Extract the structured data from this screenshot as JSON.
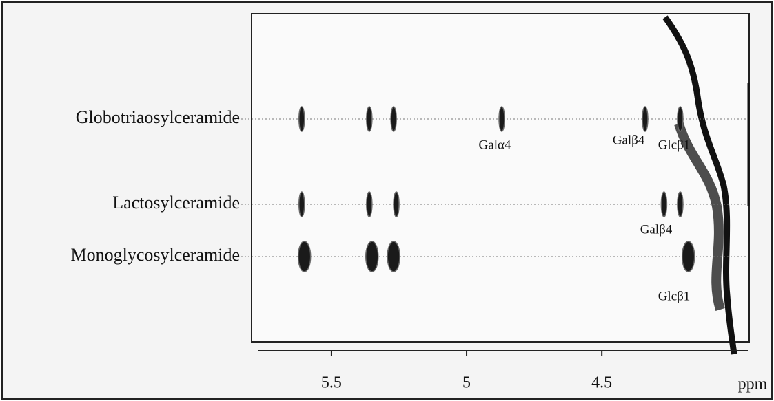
{
  "chart_data": {
    "type": "nmr",
    "x_label": "ppm",
    "xlim": [
      5.77,
      3.96
    ],
    "xticks": [
      5.5,
      5.0,
      4.5
    ],
    "series": [
      {
        "name": "Globotriaosylceramide",
        "values": [
          5.61,
          5.36,
          5.27,
          4.87,
          4.34,
          4.21
        ]
      },
      {
        "name": "Lactosylceramide",
        "values": [
          5.61,
          5.36,
          5.26,
          4.27,
          4.21
        ]
      },
      {
        "name": "Monoglycosylceramide",
        "values": [
          5.6,
          5.35,
          5.27,
          4.18
        ]
      }
    ],
    "annotations": [
      "Galα4",
      "Galβ4",
      "Glcβ1",
      "Galβ4",
      "Glcβ1"
    ]
  }
}
